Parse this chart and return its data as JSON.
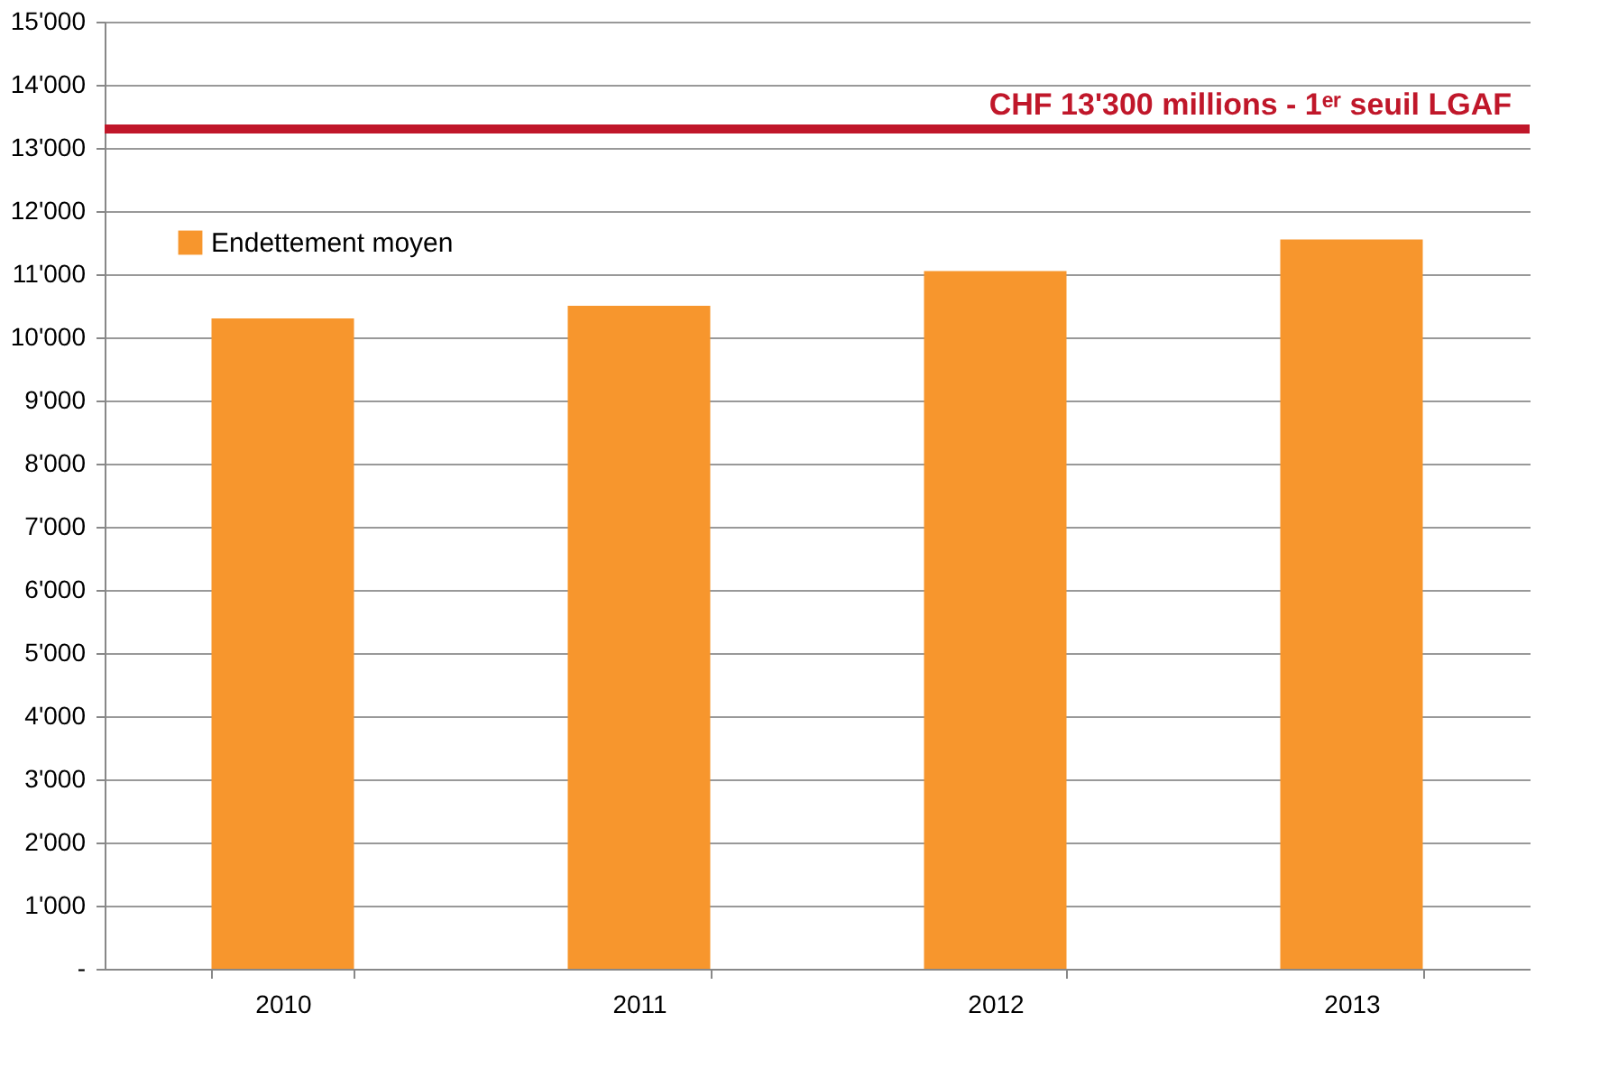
{
  "chart_data": {
    "type": "bar",
    "categories": [
      "2010",
      "2011",
      "2012",
      "2013"
    ],
    "series": [
      {
        "name": "Endettement moyen",
        "color": "#f7962d",
        "values": [
          10300,
          10500,
          11050,
          11550
        ]
      }
    ],
    "ylim": [
      0,
      15000
    ],
    "yticks": [
      {
        "value": 0,
        "label": "-"
      },
      {
        "value": 1000,
        "label": "1'000"
      },
      {
        "value": 2000,
        "label": "2'000"
      },
      {
        "value": 3000,
        "label": "3'000"
      },
      {
        "value": 4000,
        "label": "4'000"
      },
      {
        "value": 5000,
        "label": "5'000"
      },
      {
        "value": 6000,
        "label": "6'000"
      },
      {
        "value": 7000,
        "label": "7'000"
      },
      {
        "value": 8000,
        "label": "8'000"
      },
      {
        "value": 9000,
        "label": "9'000"
      },
      {
        "value": 10000,
        "label": "10'000"
      },
      {
        "value": 11000,
        "label": "11'000"
      },
      {
        "value": 12000,
        "label": "12'000"
      },
      {
        "value": 13000,
        "label": "13'000"
      },
      {
        "value": 14000,
        "label": "14'000"
      },
      {
        "value": 15000,
        "label": "15'000"
      }
    ],
    "ref_lines": [
      {
        "axis": "y",
        "value": 13300,
        "label": "CHF 13'300 millions - 1ᵉʳ seuil LGAF",
        "color": "#c0172a",
        "line_style": "solid"
      }
    ],
    "grid": "y",
    "legend": "top left"
  }
}
